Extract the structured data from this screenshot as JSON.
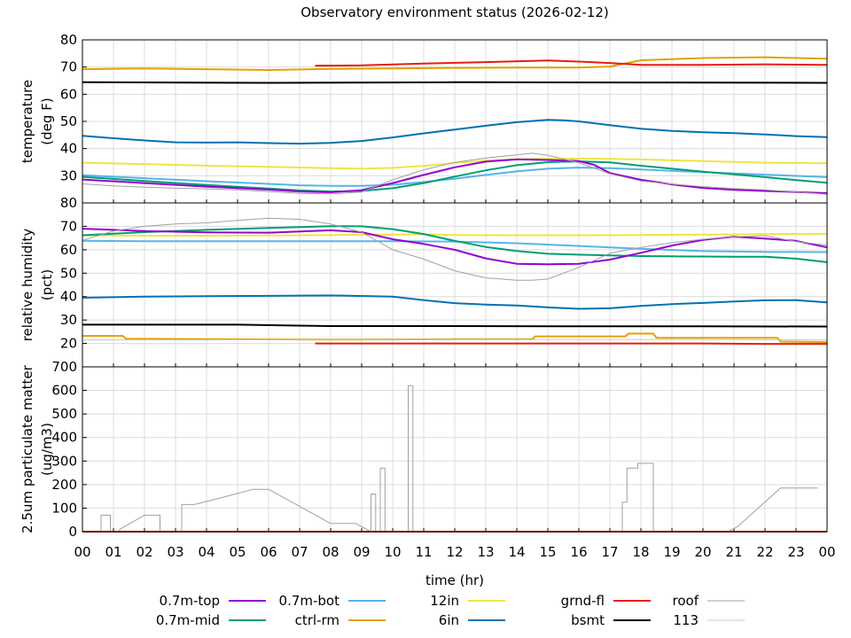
{
  "chart_data": {
    "type": "line",
    "title": "Observatory environment status (2026-02-12)",
    "xlabel": "time (hr)",
    "xlim": [
      0,
      24
    ],
    "xticks": [
      "00",
      "01",
      "02",
      "03",
      "04",
      "05",
      "06",
      "07",
      "08",
      "09",
      "10",
      "11",
      "12",
      "13",
      "14",
      "15",
      "16",
      "17",
      "18",
      "19",
      "20",
      "21",
      "22",
      "23",
      "00"
    ],
    "colors": {
      "0.7m-top": "#9400d3",
      "0.7m-mid": "#009e73",
      "0.7m-bot": "#56b4e9",
      "ctrl-rm": "#e69f00",
      "12in": "#f0e442",
      "6in": "#0072b2",
      "grnd-fl": "#e51e10",
      "bsmt": "#000000",
      "roof": "#a0a0a0",
      "113": "#c8c8c8"
    },
    "legend": [
      {
        "name": "0.7m-top"
      },
      {
        "name": "0.7m-bot"
      },
      {
        "name": "12in"
      },
      {
        "name": "grnd-fl"
      },
      {
        "name": "roof"
      },
      {
        "name": "0.7m-mid"
      },
      {
        "name": "ctrl-rm"
      },
      {
        "name": "6in"
      },
      {
        "name": "bsmt"
      },
      {
        "name": "113"
      }
    ],
    "panels": [
      {
        "ylabel": [
          "temperature",
          "(deg F)"
        ],
        "ylim": [
          20,
          80
        ],
        "yticks": [
          30,
          40,
          50,
          60,
          70,
          80
        ],
        "series": [
          {
            "name": "bsmt",
            "x": [
              0,
              6,
              12,
              18,
              24
            ],
            "y": [
              64.4,
              64.2,
              64.4,
              64.3,
              64.2
            ]
          },
          {
            "name": "ctrl-rm",
            "x": [
              0,
              2,
              4,
              6,
              8,
              10,
              12,
              14,
              16,
              17,
              18,
              20,
              22,
              24
            ],
            "y": [
              69.2,
              69.5,
              69.2,
              68.9,
              69.3,
              69.5,
              69.7,
              69.8,
              69.8,
              70.2,
              72.5,
              73.3,
              73.6,
              73.1
            ]
          },
          {
            "name": "grnd-fl",
            "x": [
              7.5,
              9,
              11,
              13,
              15,
              16,
              17,
              18,
              20,
              22,
              24
            ],
            "y": [
              70.5,
              70.6,
              71.3,
              71.8,
              72.4,
              72.0,
              71.5,
              70.8,
              70.8,
              71.0,
              70.8
            ]
          },
          {
            "name": "6in",
            "x": [
              0,
              1,
              2,
              3,
              4,
              5,
              6,
              7,
              8,
              9,
              10,
              11,
              12,
              13,
              14,
              15,
              15.5,
              16,
              17,
              18,
              19,
              20,
              21,
              22,
              23,
              24
            ],
            "y": [
              44.7,
              43.8,
              43.0,
              42.3,
              42.2,
              42.3,
              42.0,
              41.8,
              42.1,
              42.8,
              44.1,
              45.6,
              47.0,
              48.4,
              49.7,
              50.6,
              50.4,
              50.0,
              48.6,
              47.3,
              46.5,
              46.0,
              45.7,
              45.2,
              44.6,
              44.2
            ]
          },
          {
            "name": "12in",
            "x": [
              0,
              2,
              4,
              6,
              8,
              9,
              10,
              11,
              12,
              13,
              14,
              15,
              16,
              17,
              18,
              20,
              22,
              24
            ],
            "y": [
              34.8,
              34.3,
              33.7,
              33.3,
              32.8,
              32.6,
              32.9,
              33.6,
              34.7,
              35.6,
              36.1,
              36.2,
              36.3,
              36.2,
              36.0,
              35.4,
              34.8,
              34.6
            ]
          },
          {
            "name": "0.7m-bot",
            "x": [
              0,
              2,
              4,
              6,
              7,
              8,
              9,
              10,
              11,
              12,
              13,
              14,
              15,
              16,
              17,
              18,
              19,
              20,
              22,
              24
            ],
            "y": [
              30.2,
              29.1,
              28.0,
              27.0,
              26.5,
              26.3,
              26.3,
              26.7,
              27.7,
              28.9,
              30.3,
              31.6,
              32.6,
              33.0,
              32.8,
              32.3,
              31.8,
              31.3,
              30.4,
              29.5
            ]
          },
          {
            "name": "0.7m-mid",
            "x": [
              0,
              2,
              4,
              6,
              7,
              8,
              9,
              10,
              11,
              12,
              13,
              14,
              15,
              16,
              17,
              18,
              19,
              20,
              21,
              22,
              23,
              24
            ],
            "y": [
              29.6,
              28.1,
              26.6,
              25.3,
              24.6,
              24.2,
              24.4,
              25.4,
              27.3,
              29.7,
              32.0,
              33.9,
              35.0,
              35.3,
              34.9,
              33.7,
              32.6,
              31.5,
              30.5,
              29.5,
              28.4,
              27.4
            ]
          },
          {
            "name": "0.7m-top",
            "x": [
              0,
              2,
              4,
              6,
              7,
              8,
              9,
              10,
              11,
              12,
              13,
              14,
              15,
              16,
              16.5,
              17,
              18,
              19,
              20,
              21,
              22,
              23,
              24
            ],
            "y": [
              28.6,
              27.3,
              26.0,
              24.9,
              24.2,
              23.9,
              24.7,
              27.3,
              30.3,
              33.1,
              35.2,
              36.0,
              35.8,
              35.4,
              34.0,
              31.0,
              28.5,
              26.8,
              25.5,
              24.8,
              24.4,
              24.0,
              23.6
            ]
          },
          {
            "name": "roof",
            "x": [
              0,
              1,
              2,
              3,
              4,
              5,
              6,
              7,
              8,
              9,
              10,
              11,
              12,
              13,
              14,
              14.5,
              15,
              16,
              17,
              18,
              19,
              20,
              21,
              22,
              23,
              24
            ],
            "y": [
              27.0,
              26.3,
              25.8,
              25.4,
              25.2,
              24.8,
              24.2,
              23.5,
              23.3,
              24.0,
              28.5,
              32.2,
              34.9,
              36.5,
              37.7,
              38.3,
              37.5,
              34.8,
              30.7,
              28.1,
              26.9,
              26.0,
              25.3,
              24.8,
              24.0,
              23.2
            ]
          }
        ]
      },
      {
        "ylabel": [
          "relative humidity",
          "(pct)"
        ],
        "ylim": [
          10,
          80
        ],
        "yticks": [
          20,
          30,
          40,
          50,
          60,
          70,
          80
        ],
        "series": [
          {
            "name": "grnd-fl",
            "x": [
              7.5,
              10,
              12,
              14,
              16,
              18,
              20,
              22,
              24
            ],
            "y": [
              20.0,
              20.0,
              20.0,
              20.0,
              20.0,
              20.0,
              20.0,
              19.8,
              19.8
            ]
          },
          {
            "name": "ctrl-rm",
            "x": [
              0,
              1.3,
              1.4,
              4,
              8,
              12,
              14.5,
              14.6,
              17.5,
              17.6,
              18.4,
              18.5,
              22.4,
              22.5,
              24
            ],
            "y": [
              23.2,
              23.2,
              22.0,
              21.8,
              21.6,
              21.8,
              21.8,
              23.0,
              23.0,
              24.2,
              24.2,
              22.4,
              22.4,
              20.8,
              20.6
            ]
          },
          {
            "name": "bsmt",
            "x": [
              0,
              5,
              7,
              8,
              12,
              16,
              20,
              24
            ],
            "y": [
              28.0,
              28.0,
              27.6,
              27.4,
              27.4,
              27.3,
              27.3,
              27.2
            ]
          },
          {
            "name": "6in",
            "x": [
              0,
              2,
              4,
              6,
              8,
              10,
              11,
              12,
              13,
              14,
              15,
              16,
              17,
              18,
              19,
              20,
              21,
              22,
              23,
              24
            ],
            "y": [
              39.5,
              40.0,
              40.2,
              40.3,
              40.5,
              40.0,
              38.5,
              37.2,
              36.6,
              36.2,
              35.4,
              34.8,
              35.0,
              36.0,
              36.8,
              37.3,
              37.9,
              38.4,
              38.5,
              37.5
            ]
          },
          {
            "name": "0.7m-bot",
            "x": [
              0,
              2,
              4,
              6,
              8,
              10,
              12,
              14,
              16,
              18,
              20,
              22,
              24
            ],
            "y": [
              63.8,
              63.6,
              63.6,
              63.6,
              63.6,
              63.6,
              63.5,
              62.8,
              61.6,
              60.4,
              59.4,
              59.1,
              59.0
            ]
          },
          {
            "name": "12in",
            "x": [
              0,
              2,
              4,
              6,
              8,
              10,
              11,
              12,
              14,
              16,
              18,
              20,
              22,
              24
            ],
            "y": [
              66.2,
              66.0,
              66.0,
              66.1,
              66.3,
              66.5,
              66.6,
              66.3,
              66.2,
              66.2,
              66.3,
              66.5,
              66.7,
              66.8
            ]
          },
          {
            "name": "0.7m-mid",
            "x": [
              0,
              2,
              4,
              6,
              7,
              8,
              9,
              10,
              11,
              12,
              13,
              14,
              15,
              16,
              17,
              18,
              19,
              20,
              21,
              22,
              23,
              24
            ],
            "y": [
              66.2,
              67.5,
              68.5,
              69.3,
              69.7,
              70.1,
              70.0,
              68.8,
              66.7,
              63.8,
              61.2,
              59.5,
              58.3,
              57.9,
              57.6,
              57.3,
              57.2,
              57.1,
              57.0,
              57.0,
              56.2,
              54.7
            ]
          },
          {
            "name": "0.7m-top",
            "x": [
              0,
              2,
              4,
              6,
              7,
              8,
              9,
              10,
              11,
              12,
              13,
              14,
              15,
              16,
              17,
              18,
              19,
              20,
              21,
              22,
              23,
              24
            ],
            "y": [
              69.0,
              68.0,
              67.4,
              67.3,
              67.8,
              68.3,
              67.5,
              64.5,
              62.5,
              60.0,
              56.3,
              54.0,
              53.8,
              54.0,
              55.8,
              58.7,
              61.8,
              64.2,
              65.6,
              64.8,
              63.8,
              61.0
            ]
          },
          {
            "name": "roof",
            "x": [
              0,
              1,
              2,
              3,
              4,
              5,
              6,
              7,
              8,
              9,
              10,
              11,
              12,
              13,
              13.5,
              14,
              14.5,
              15,
              16,
              17,
              18,
              19,
              20,
              21,
              22,
              23,
              24
            ],
            "y": [
              64.0,
              68.0,
              70.0,
              71.0,
              71.5,
              72.5,
              73.5,
              73.0,
              71.0,
              67.5,
              60.0,
              56.0,
              51.0,
              48.0,
              47.5,
              47.0,
              47.0,
              47.5,
              52.5,
              58.5,
              61.0,
              63.0,
              64.5,
              65.5,
              66.0,
              63.5,
              62.0
            ]
          },
          {
            "name": "113",
            "x": [
              0,
              4,
              8,
              12,
              16,
              20,
              24
            ],
            "y": [
              21.5,
              21.5,
              21.6,
              21.7,
              21.7,
              21.6,
              21.5
            ]
          }
        ]
      },
      {
        "ylabel": [
          "2.5um particulate matter",
          "(ug/m3)"
        ],
        "ylim": [
          0,
          700
        ],
        "yticks": [
          0,
          100,
          200,
          300,
          400,
          500,
          600,
          700
        ],
        "series": [
          {
            "name": "grnd-fl",
            "x": [
              0,
              6,
              12,
              18,
              24
            ],
            "y": [
              0,
              0,
              0,
              0,
              0
            ]
          },
          {
            "name": "roof",
            "x": [
              0,
              0.6,
              0.6,
              0.9,
              0.9,
              1.2,
              1.2,
              2.0,
              2.5,
              2.5,
              3.2,
              3.2,
              3.6,
              4.5,
              5.5,
              6.0,
              8.0,
              8.8,
              9.3,
              9.3,
              9.45,
              9.45,
              9.6,
              9.6,
              9.75,
              9.75,
              10.5,
              10.5,
              10.65,
              10.65,
              17.4,
              17.4,
              17.55,
              17.55,
              17.9,
              17.9,
              18.4,
              18.4,
              20.8,
              21.1,
              22.5,
              23.7
            ],
            "y": [
              0,
              0,
              70,
              70,
              0,
              0,
              10,
              70,
              70,
              0,
              0,
              115,
              115,
              145,
              180,
              180,
              35,
              35,
              0,
              160,
              160,
              0,
              0,
              270,
              270,
              0,
              0,
              620,
              620,
              0,
              0,
              125,
              125,
              270,
              270,
              290,
              290,
              0,
              0,
              20,
              185,
              185
            ]
          }
        ]
      }
    ]
  }
}
